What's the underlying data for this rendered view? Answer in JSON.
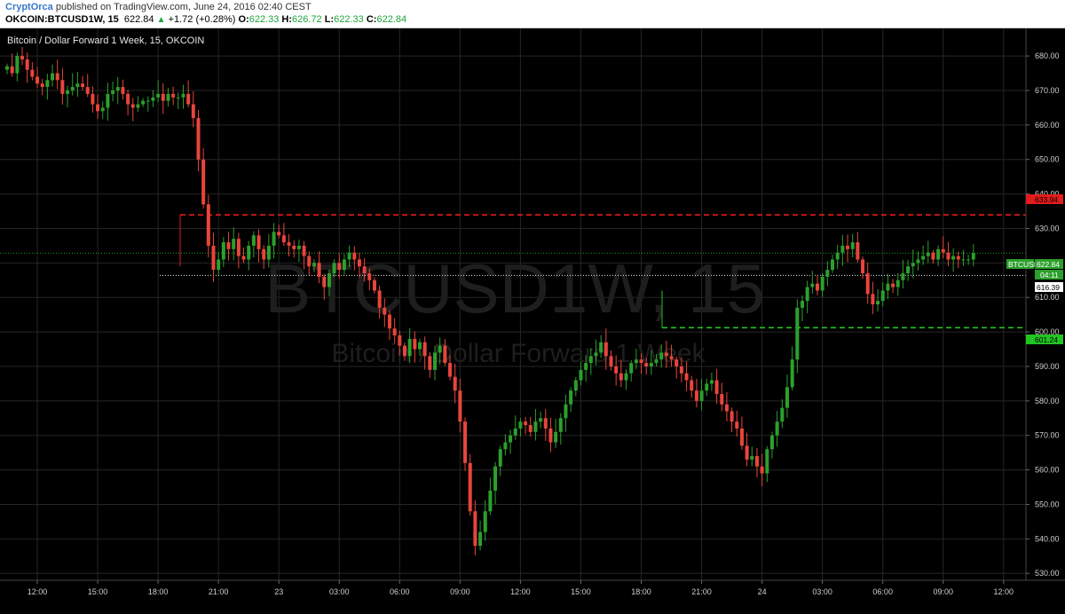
{
  "header": {
    "author": "CryptOrca",
    "published": " published on TradingView.com, June 24, 2016 02:40 CEST",
    "symbol": "OKCOIN:BTCUSD1W, 15",
    "last": "622.84",
    "change_arrow": "▲",
    "change": "+1.72 (+0.28%)",
    "o_label": "O:",
    "o": "622.33",
    "h_label": "H:",
    "h": "626.72",
    "l_label": "L:",
    "l": "622.33",
    "c_label": "C:",
    "c": "622.84"
  },
  "pane": {
    "title": "Bitcoin / Dollar Forward 1 Week, 15, OKCOIN",
    "watermark_symbol": "BTCUSD1W, 15",
    "watermark_desc": "Bitcoin / Dollar Forward 1 Week"
  },
  "colors": {
    "background": "#000000",
    "grid": "#262626",
    "up": "#2ca02c",
    "down": "#e8453c",
    "resistance": "#e31b1b",
    "support": "#22c422"
  },
  "tags": {
    "symbol_tag": "BTCUSD1W",
    "price_tag": "622.84",
    "countdown": "04:11",
    "resistance": "633.94",
    "support": "601.24",
    "white_level": "616.39"
  },
  "chart_data": {
    "type": "candlestick",
    "title": "Bitcoin / Dollar Forward 1 Week, 15, OKCOIN",
    "interval": "15",
    "ylim": [
      528,
      688
    ],
    "y_ticks": [
      "680.00",
      "670.00",
      "660.00",
      "650.00",
      "640.00",
      "630.00",
      "620.00",
      "610.00",
      "600.00",
      "590.00",
      "580.00",
      "570.00",
      "560.00",
      "550.00",
      "540.00",
      "530.00"
    ],
    "x_ticks": [
      "12:00",
      "15:00",
      "18:00",
      "21:00",
      "23",
      "03:00",
      "06:00",
      "09:00",
      "12:00",
      "15:00",
      "18:00",
      "21:00",
      "24",
      "03:00",
      "06:00",
      "09:00",
      "12:00"
    ],
    "grid": true,
    "horizontal_levels": [
      {
        "name": "resistance",
        "value": 633.94,
        "style": "dashed"
      },
      {
        "name": "support",
        "value": 601.24,
        "style": "dashed"
      },
      {
        "name": "white_level",
        "value": 616.39,
        "style": "dotted"
      },
      {
        "name": "last_price",
        "value": 622.84,
        "style": "dotted"
      }
    ],
    "closes": [
      677,
      675,
      680,
      679,
      676,
      674,
      672,
      671,
      673,
      675,
      673,
      669,
      670,
      671,
      672,
      671,
      669,
      666,
      664,
      665,
      669,
      670,
      671,
      669,
      666,
      665,
      666,
      667,
      667,
      668,
      669,
      667,
      669,
      668,
      668,
      669,
      666,
      662,
      650,
      637,
      625,
      618,
      621,
      626,
      624,
      627,
      622,
      621,
      625,
      628,
      624,
      621,
      625,
      629,
      628,
      626,
      625,
      624,
      625,
      622,
      619,
      620,
      616,
      613,
      617,
      620,
      618,
      621,
      623,
      621,
      619,
      617,
      615,
      612,
      607,
      605,
      601,
      599,
      596,
      593,
      598,
      595,
      597,
      593,
      589,
      594,
      596,
      591,
      587,
      583,
      574,
      562,
      548,
      538,
      542,
      548,
      554,
      561,
      566,
      568,
      570,
      572,
      574,
      573,
      571,
      574,
      575,
      572,
      568,
      571,
      575,
      579,
      583,
      586,
      589,
      591,
      593,
      594,
      597,
      593,
      590,
      588,
      586,
      588,
      591,
      592,
      591,
      590,
      591,
      592,
      594,
      593,
      592,
      590,
      588,
      586,
      583,
      580,
      583,
      585,
      586,
      582,
      579,
      577,
      574,
      572,
      567,
      563,
      564,
      561,
      559,
      566,
      570,
      574,
      578,
      584,
      592,
      607,
      609,
      613,
      614,
      612,
      616,
      618,
      621,
      623,
      625,
      624,
      626,
      621,
      617,
      611,
      608,
      609,
      612,
      614,
      613,
      615,
      617,
      619,
      620,
      621,
      622,
      623,
      621,
      624,
      623,
      621,
      622,
      621,
      621,
      621,
      622.84
    ]
  }
}
